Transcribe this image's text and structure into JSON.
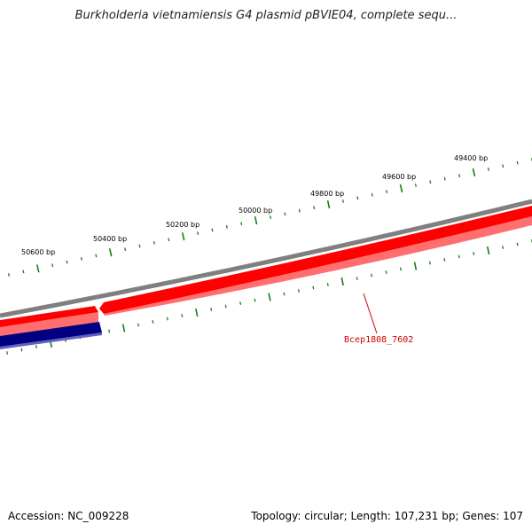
{
  "title": "Burkholderia vietnamiensis G4 plasmid pBVIE04, complete sequ...",
  "footer": {
    "accession": "Accession: NC_009228",
    "summary": "Topology: circular; Length: 107,231 bp; Genes: 107"
  },
  "colors": {
    "backbone": "#7f7f7f",
    "forward_gene": "#ff0000",
    "forward_gene_shadow": "#ff6f6f",
    "reverse_gene": "#000080",
    "reverse_gene_shadow": "#6060c0",
    "ticks": "#1a7a1a",
    "gene_label": "#cc0000"
  },
  "ruler_labels": [
    "50600 bp",
    "50400 bp",
    "50200 bp",
    "50000 bp",
    "49800 bp",
    "49600 bp",
    "49400 bp"
  ],
  "genes": [
    {
      "label": "Bcep1808_7602",
      "strand": "forward"
    },
    {
      "label": "",
      "strand": "forward"
    },
    {
      "label": "",
      "strand": "reverse"
    }
  ]
}
